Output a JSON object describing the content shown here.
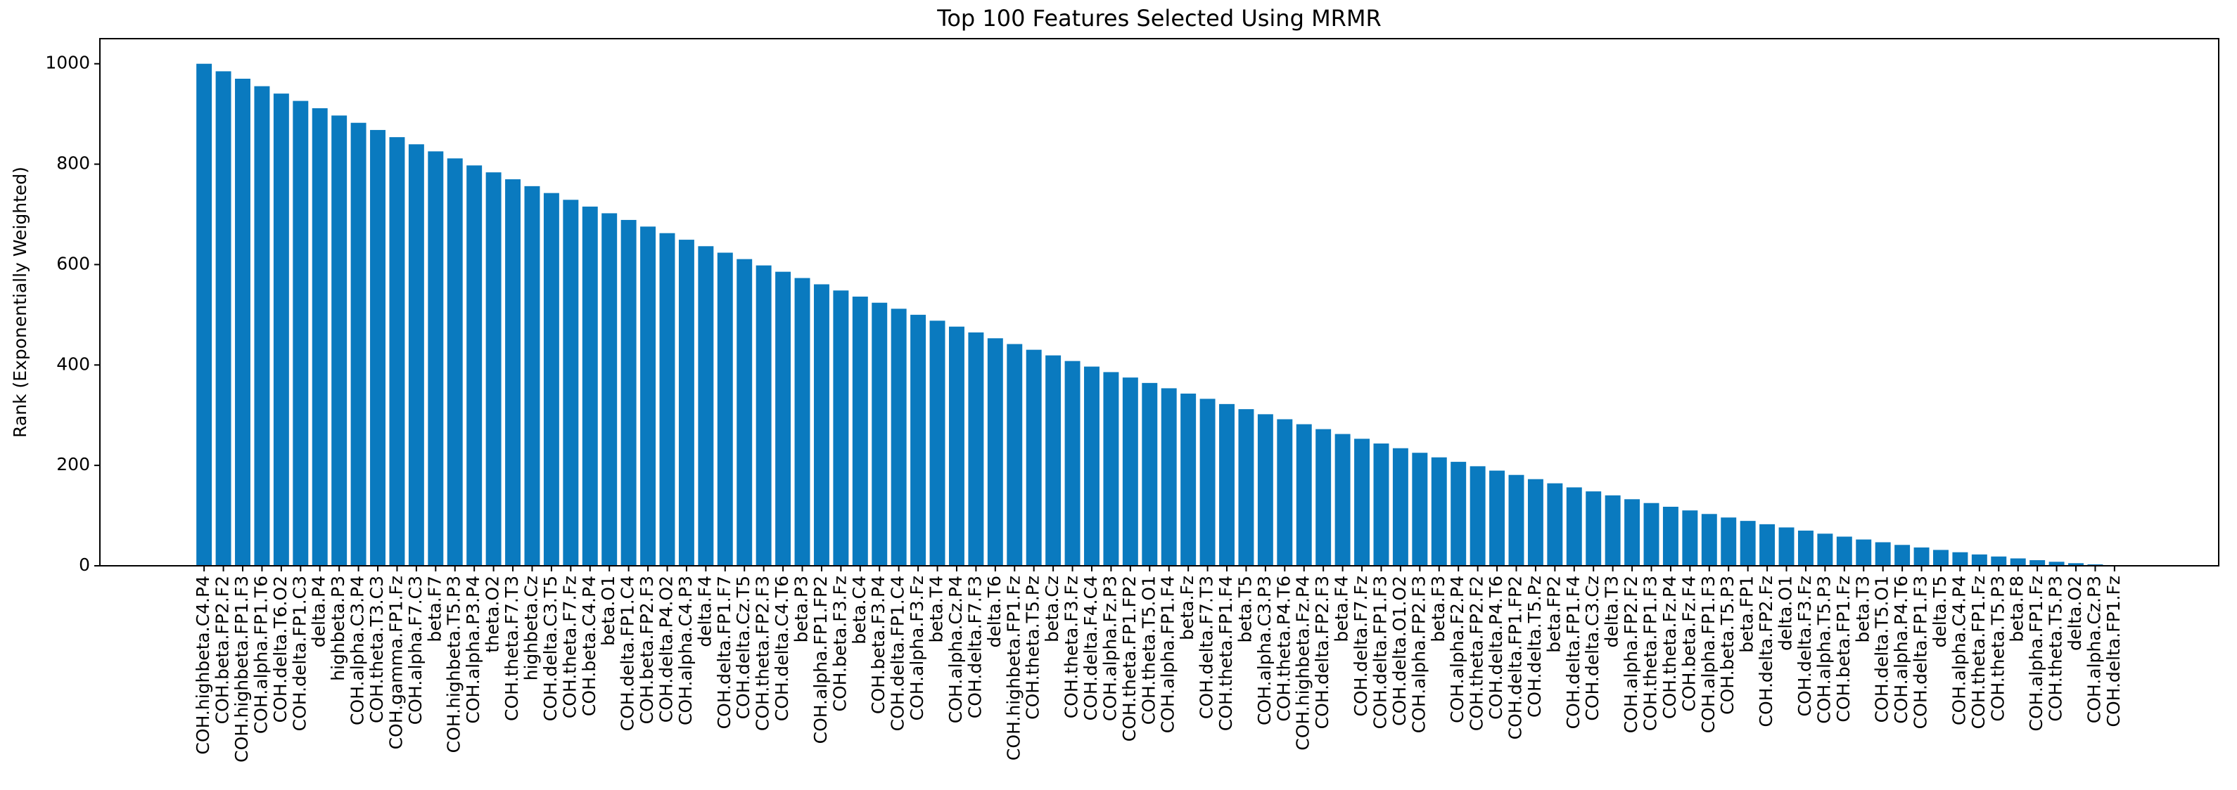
{
  "chart_data": {
    "type": "bar",
    "title": "Top 100 Features Selected Using MRMR",
    "y_label": "Rank (Exponentially Weighted)",
    "categories": [
      "COH.highbeta.C4.P4",
      "COH.beta.FP2.F2",
      "COH.highbeta.FP1.F3",
      "COH.alpha.FP1.T6",
      "COH.delta.T6.O2",
      "COH.delta.FP1.C3",
      "delta.P4",
      "highbeta.P3",
      "COH.alpha.C3.P4",
      "COH.theta.T3.C3",
      "COH.gamma.FP1.Fz",
      "COH.alpha.F7.C3",
      "beta.F7",
      "COH.highbeta.T5.P3",
      "COH.alpha.P3.P4",
      "theta.O2",
      "COH.theta.F7.T3",
      "highbeta.Cz",
      "COH.delta.C3.T5",
      "COH.theta.F7.Fz",
      "COH.beta.C4.P4",
      "beta.O1",
      "COH.delta.FP1.C4",
      "COH.beta.FP2.F3",
      "COH.delta.P4.O2",
      "COH.alpha.C4.P3",
      "delta.F4",
      "COH.delta.FP1.F7",
      "COH.delta.Cz.T5",
      "COH.theta.FP2.F3",
      "COH.delta.C4.T6",
      "beta.P3",
      "COH.alpha.FP1.FP2",
      "COH.beta.F3.Fz",
      "beta.C4",
      "COH.beta.F3.P4",
      "COH.delta.FP1.C4",
      "COH.alpha.F3.Fz",
      "beta.T4",
      "COH.alpha.Cz.P4",
      "COH.delta.F7.F3",
      "delta.T6",
      "COH.highbeta.FP1.Fz",
      "COH.theta.T5.Pz",
      "beta.Cz",
      "COH.theta.F3.Fz",
      "COH.delta.F4.C4",
      "COH.alpha.Fz.P3",
      "COH.theta.FP1.FP2",
      "COH.theta.T5.O1",
      "COH.alpha.FP1.F4",
      "beta.Fz",
      "COH.delta.F7.T3",
      "COH.theta.FP1.F4",
      "beta.T5",
      "COH.alpha.C3.P3",
      "COH.theta.P4.T6",
      "COH.highbeta.Fz.P4",
      "COH.delta.FP2.F3",
      "beta.F4",
      "COH.delta.F7.Fz",
      "COH.delta.FP1.F3",
      "COH.delta.O1.O2",
      "COH.alpha.FP2.F3",
      "beta.F3",
      "COH.alpha.F2.P4",
      "COH.theta.FP2.F2",
      "COH.delta.P4.T6",
      "COH.delta.FP1.FP2",
      "COH.delta.T5.Pz",
      "beta.FP2",
      "COH.delta.FP1.F4",
      "COH.delta.C3.Cz",
      "delta.T3",
      "COH.alpha.FP2.F2",
      "COH.theta.FP1.F3",
      "COH.theta.Fz.P4",
      "COH.beta.Fz.F4",
      "COH.alpha.FP1.F3",
      "COH.beta.T5.P3",
      "beta.FP1",
      "COH.delta.FP2.Fz",
      "delta.O1",
      "COH.delta.F3.Fz",
      "COH.alpha.T5.P3",
      "COH.beta.FP1.Fz",
      "beta.T3",
      "COH.delta.T5.O1",
      "COH.alpha.P4.T6",
      "COH.delta.FP1.F3",
      "delta.T5",
      "COH.alpha.C4.P4",
      "COH.theta.FP1.Fz",
      "COH.theta.T5.P3",
      "beta.F8",
      "COH.alpha.FP1.Fz",
      "COH.theta.T5.P3",
      "delta.O2",
      "COH.alpha.Cz.P3",
      "COH.delta.FP1.Fz"
    ],
    "values": [
      1000,
      985.0,
      970.2,
      955.3,
      940.6,
      926.0,
      911.4,
      896.9,
      882.4,
      868.1,
      853.8,
      839.6,
      825.5,
      811.5,
      797.5,
      783.7,
      769.9,
      756.2,
      742.5,
      729.0,
      715.5,
      702.2,
      688.9,
      675.7,
      662.6,
      649.5,
      636.6,
      623.7,
      610.9,
      598.3,
      585.7,
      573.2,
      560.7,
      548.4,
      536.2,
      524.0,
      512,
      500.0,
      488.2,
      476.4,
      464.8,
      453.2,
      441.7,
      430.3,
      419.1,
      407.9,
      396.8,
      385.8,
      375.0,
      364.2,
      353.6,
      343,
      332.6,
      322.2,
      312.0,
      301.9,
      291.9,
      282.0,
      272.2,
      262.5,
      253.0,
      243.6,
      234.2,
      225.1,
      216,
      207.1,
      198.3,
      189.6,
      181.0,
      172.6,
      164.3,
      156.2,
      148.2,
      140.3,
      132.6,
      125,
      117.6,
      110.3,
      103.2,
      96.2,
      89.4,
      82.8,
      76.4,
      70.1,
      64,
      58.1,
      52.4,
      46.9,
      41.6,
      36.5,
      31.6,
      27,
      22.6,
      18.5,
      14.7,
      11.2,
      8,
      5.2,
      2.8,
      1
    ],
    "color": "#0a7abf",
    "ylim": [
      0,
      1050
    ],
    "yticks": [
      0,
      200,
      400,
      600,
      800,
      1000
    ]
  }
}
